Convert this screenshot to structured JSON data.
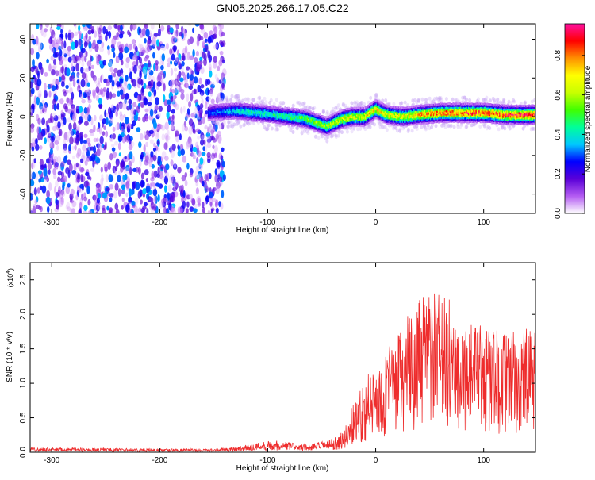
{
  "title": "GN05.2025.266.17.05.C22",
  "chart_data": [
    {
      "type": "heatmap",
      "title": "GN05.2025.266.17.05.C22",
      "xlabel": "Height of straight line (km)",
      "ylabel": "Frequency (Hz)",
      "xlim": [
        -320,
        148
      ],
      "ylim": [
        -50,
        48
      ],
      "xticks": [
        -300,
        -200,
        -100,
        0,
        100
      ],
      "xtick_labels": [
        "-300",
        "-200",
        "-100",
        "0",
        "100"
      ],
      "yticks": [
        -40,
        -20,
        0,
        20,
        40
      ],
      "ytick_labels": [
        "-40",
        "-20",
        "0",
        "20",
        "40"
      ],
      "colorbar": {
        "label": "Normalized spectral amplitude",
        "range": [
          0,
          0.96
        ],
        "ticks": [
          0.0,
          0.2,
          0.4,
          0.6,
          0.8
        ],
        "tick_labels": [
          "0.0",
          "0.2",
          "0.4",
          "0.6",
          "0.8"
        ],
        "colors": [
          "#ffffff",
          "#b45cf2",
          "#5a00d8",
          "#0000ff",
          "#00c8ff",
          "#00ff9a",
          "#40ff00",
          "#c8ff00",
          "#ffff00",
          "#ff9000",
          "#ff0000",
          "#ff10a0"
        ]
      },
      "noise_region_x": [
        -320,
        -140
      ],
      "ridge": {
        "x": [
          -155,
          -130,
          -110,
          -95,
          -80,
          -65,
          -55,
          -45,
          -38,
          -30,
          -20,
          -10,
          0,
          10,
          25,
          40,
          60,
          80,
          100,
          120,
          148
        ],
        "frequency": [
          2,
          3,
          2,
          1,
          0,
          -1,
          -3,
          -5,
          -3,
          -1,
          0,
          0,
          4,
          1,
          0,
          1,
          2,
          2,
          2,
          1,
          1
        ],
        "amplitude": [
          0.3,
          0.4,
          0.45,
          0.45,
          0.5,
          0.55,
          0.6,
          0.6,
          0.65,
          0.7,
          0.7,
          0.72,
          0.75,
          0.72,
          0.72,
          0.8,
          0.85,
          0.9,
          0.9,
          0.92,
          0.95
        ]
      }
    },
    {
      "type": "line",
      "xlabel": "Height of straight line (km)",
      "ylabel": "SNR (10 * v/v)",
      "y_multiplier": "(x10",
      "y_multiplier_exp": "4",
      "y_multiplier_close": ")",
      "xlim": [
        -320,
        148
      ],
      "ylim": [
        0,
        2.75
      ],
      "xticks": [
        -300,
        -200,
        -100,
        0,
        100
      ],
      "xtick_labels": [
        "-300",
        "-200",
        "-100",
        "0",
        "100"
      ],
      "yticks": [
        0.0,
        0.5,
        1.0,
        1.5,
        2.0,
        2.5
      ],
      "ytick_labels": [
        "0.0",
        "0.5",
        "1.0",
        "1.5",
        "2.0",
        "2.5"
      ],
      "color": "#ee2c2c",
      "series": [
        {
          "name": "SNR",
          "x": [
            -320,
            -250,
            -200,
            -150,
            -125,
            -110,
            -100,
            -90,
            -80,
            -70,
            -60,
            -50,
            -40,
            -30,
            -25,
            -20,
            -10,
            0,
            10,
            20,
            30,
            40,
            50,
            60,
            70,
            80,
            90,
            100,
            110,
            120,
            130,
            140,
            148
          ],
          "envelope": [
            0.07,
            0.06,
            0.05,
            0.05,
            0.09,
            0.14,
            0.17,
            0.17,
            0.15,
            0.12,
            0.12,
            0.16,
            0.2,
            0.3,
            0.5,
            0.8,
            1.05,
            1.3,
            1.5,
            1.7,
            2.0,
            2.2,
            2.4,
            2.3,
            2.2,
            2.0,
            1.9,
            1.85,
            1.8,
            1.75,
            1.75,
            1.8,
            1.75
          ]
        }
      ]
    }
  ]
}
